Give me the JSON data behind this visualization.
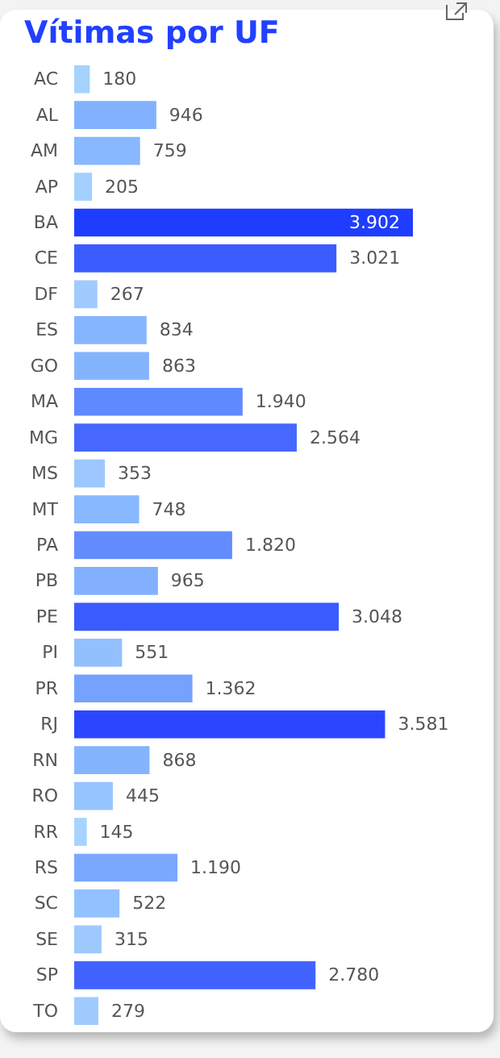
{
  "chart_data": {
    "type": "bar",
    "orientation": "horizontal",
    "title": "Vítimas por UF",
    "categories": [
      "AC",
      "AL",
      "AM",
      "AP",
      "BA",
      "CE",
      "DF",
      "ES",
      "GO",
      "MA",
      "MG",
      "MS",
      "MT",
      "PA",
      "PB",
      "PE",
      "PI",
      "PR",
      "RJ",
      "RN",
      "RO",
      "RR",
      "RS",
      "SC",
      "SE",
      "SP",
      "TO"
    ],
    "values": [
      180,
      946,
      759,
      205,
      3902,
      3021,
      267,
      834,
      863,
      1940,
      2564,
      353,
      748,
      1820,
      965,
      3048,
      551,
      1362,
      3581,
      868,
      445,
      145,
      1190,
      522,
      315,
      2780,
      279
    ],
    "value_labels": [
      "180",
      "946",
      "759",
      "205",
      "3.902",
      "3.021",
      "267",
      "834",
      "863",
      "1.940",
      "2.564",
      "353",
      "748",
      "1.820",
      "965",
      "3.048",
      "551",
      "1.362",
      "3.581",
      "868",
      "445",
      "145",
      "1.190",
      "522",
      "315",
      "2.780",
      "279"
    ],
    "colors": [
      "#a5d3ff",
      "#82b1ff",
      "#88b8ff",
      "#a3d0ff",
      "#1f3dff",
      "#3a5cff",
      "#9fcbff",
      "#86b5ff",
      "#85b4ff",
      "#5f89ff",
      "#4668ff",
      "#9cc8ff",
      "#88b8ff",
      "#638dff",
      "#82b0ff",
      "#3a5bff",
      "#92c0ff",
      "#75a2ff",
      "#2a47ff",
      "#85b4ff",
      "#96c4ff",
      "#a6d4ff",
      "#7aa8ff",
      "#93c1ff",
      "#9dc9ff",
      "#4063ff",
      "#9fcbff"
    ]
  }
}
